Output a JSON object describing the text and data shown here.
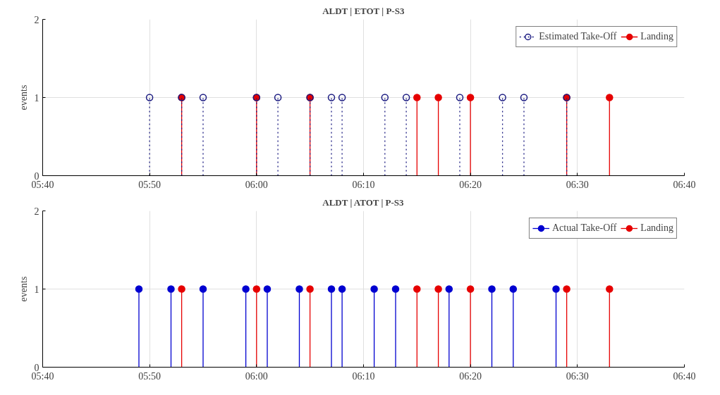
{
  "chart_data": [
    {
      "type": "lollipop",
      "title": "ALDT | ETOT | P-S3",
      "ylabel": "events",
      "xlim": [
        5.6667,
        6.6667
      ],
      "xticks": [
        {
          "value": 5.6667,
          "label": "05:40"
        },
        {
          "value": 5.8333,
          "label": "05:50"
        },
        {
          "value": 6,
          "label": "06:00"
        },
        {
          "value": 6.1667,
          "label": "06:10"
        },
        {
          "value": 6.3333,
          "label": "06:20"
        },
        {
          "value": 6.5,
          "label": "06:30"
        },
        {
          "value": 6.6667,
          "label": "06:40"
        }
      ],
      "ylim": [
        0,
        2
      ],
      "yticks": [
        0,
        1,
        2
      ],
      "grid": true,
      "legend": "top right",
      "marker": "circle",
      "series": [
        {
          "name": "Estimated Take-Off",
          "color": "#1a1a80",
          "line_style": "dotted",
          "x": [
            5.8333,
            5.8833,
            5.9167,
            6,
            6.0333,
            6.0833,
            6.1167,
            6.1333,
            6.2,
            6.2333,
            6.3167,
            6.3833,
            6.4167,
            6.4833
          ],
          "values": [
            1,
            1,
            1,
            1,
            1,
            1,
            1,
            1,
            1,
            1,
            1,
            1,
            1,
            1
          ]
        },
        {
          "name": "Landing",
          "color": "#e60000",
          "line_style": "solid",
          "x": [
            5.8833,
            6,
            6.0833,
            6.25,
            6.2833,
            6.3333,
            6.4833,
            6.55
          ],
          "values": [
            1,
            1,
            1,
            1,
            1,
            1,
            1,
            1
          ]
        }
      ]
    },
    {
      "type": "lollipop",
      "title": "ALDT | ATOT | P-S3",
      "ylabel": "events",
      "xlim": [
        5.6667,
        6.6667
      ],
      "xticks": [
        {
          "value": 5.6667,
          "label": "05:40"
        },
        {
          "value": 5.8333,
          "label": "05:50"
        },
        {
          "value": 6,
          "label": "06:00"
        },
        {
          "value": 6.1667,
          "label": "06:10"
        },
        {
          "value": 6.3333,
          "label": "06:20"
        },
        {
          "value": 6.5,
          "label": "06:30"
        },
        {
          "value": 6.6667,
          "label": "06:40"
        }
      ],
      "ylim": [
        0,
        2
      ],
      "yticks": [
        0,
        1,
        2
      ],
      "grid": true,
      "legend": "top right",
      "marker": "circle",
      "series": [
        {
          "name": "Actual Take-Off",
          "color": "#0000d0",
          "line_style": "solid",
          "x": [
            5.8167,
            5.8667,
            5.9167,
            5.9833,
            6.0167,
            6.0667,
            6.1167,
            6.1333,
            6.1833,
            6.2167,
            6.3,
            6.3667,
            6.4,
            6.4667
          ],
          "values": [
            1,
            1,
            1,
            1,
            1,
            1,
            1,
            1,
            1,
            1,
            1,
            1,
            1,
            1
          ]
        },
        {
          "name": "Landing",
          "color": "#e60000",
          "line_style": "solid",
          "x": [
            5.8833,
            6,
            6.0833,
            6.25,
            6.2833,
            6.3333,
            6.4833,
            6.55
          ],
          "values": [
            1,
            1,
            1,
            1,
            1,
            1,
            1,
            1
          ]
        }
      ]
    }
  ]
}
